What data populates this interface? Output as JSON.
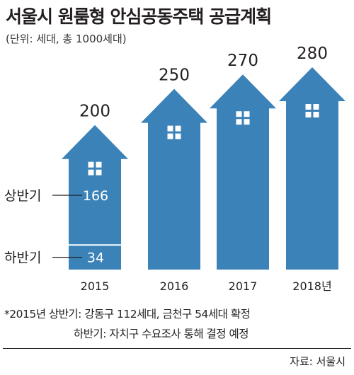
{
  "title": "서울시 원룸형 안심공동주택 공급계획",
  "unit": "(단위: 세대, 총 1000세대)",
  "chart_data": {
    "type": "bar",
    "title": "서울시 원룸형 안심공동주택 공급계획",
    "categories": [
      "2015",
      "2016",
      "2017",
      "2018년"
    ],
    "values": [
      200,
      250,
      270,
      280
    ],
    "segments_2015": [
      {
        "name": "상반기",
        "value": 166
      },
      {
        "name": "하반기",
        "value": 34
      }
    ],
    "ylim": [
      0,
      280
    ],
    "grid": false,
    "bar_color": "#3b82b8",
    "window_color": "#ffffff"
  },
  "notes": {
    "line1": "*2015년 상반기: 강동구 112세대, 금천구 54세대 확정",
    "line2": "하반기: 자치구 수요조사 통해 결정 예정"
  },
  "source": "자료: 서울시"
}
